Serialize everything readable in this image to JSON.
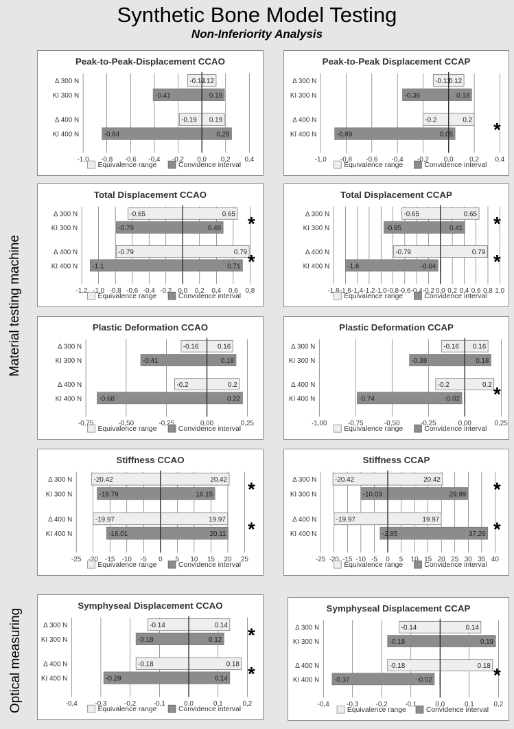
{
  "title": "Synthetic Bone Model Testing",
  "subtitle": "Non-Inferiority Analysis",
  "section_labels": [
    "Material testing machine",
    "Optical measuring"
  ],
  "legend": {
    "equivalence": "Equivalence range",
    "confidence": "Convidence interval"
  },
  "colors": {
    "equivalence_fill": "#eeeeee",
    "confidence_fill": "#8c8c8c",
    "grid": "#555555"
  },
  "chart_data": [
    {
      "type": "bar",
      "title": "Peak-to-Peak-Displacement CCAO",
      "categories": [
        "Δ 300 N",
        "KI 300 N",
        "Δ 400 N",
        "KI 400 N"
      ],
      "series": [
        {
          "name": "Equivalence range",
          "ranges": [
            [
              -0.12,
              0.12
            ],
            [
              -0.19,
              0.19
            ]
          ]
        },
        {
          "name": "Convidence interval",
          "ranges": [
            [
              -0.41,
              0.19
            ],
            [
              -0.84,
              0.25
            ]
          ]
        }
      ],
      "xlim": [
        -1.0,
        0.4
      ],
      "ticks": [
        -1.0,
        -0.8,
        -0.6,
        -0.4,
        -0.2,
        0.0,
        0.2,
        0.4
      ],
      "tick_labels": [
        "-1,0",
        "-0,8",
        "-0,6",
        "-0,4",
        "-0,2",
        "0,0",
        "0,2",
        "0,4"
      ],
      "grid": true,
      "asterisks": [
        false,
        false
      ]
    },
    {
      "type": "bar",
      "title": "Peak-to-Peak Displacement CCAP",
      "categories": [
        "Δ 300 N",
        "KI 300 N",
        "Δ 400 N",
        "KI 400 N"
      ],
      "series": [
        {
          "name": "Equivalence range",
          "ranges": [
            [
              -0.12,
              0.12
            ],
            [
              -0.2,
              0.2
            ]
          ]
        },
        {
          "name": "Convidence interval",
          "ranges": [
            [
              -0.36,
              0.18
            ],
            [
              -0.89,
              0.05
            ]
          ]
        }
      ],
      "xlim": [
        -1.0,
        0.4
      ],
      "ticks": [
        -1.0,
        -0.8,
        -0.6,
        -0.4,
        -0.2,
        0.0,
        0.2,
        0.4
      ],
      "tick_labels": [
        "-1,0",
        "-0,8",
        "-0,6",
        "-0,4",
        "-0,2",
        "0,0",
        "0,2",
        "0,4"
      ],
      "grid": true,
      "asterisks": [
        false,
        true
      ]
    },
    {
      "type": "bar",
      "title": "Total Displacement CCAO",
      "categories": [
        "Δ 300 N",
        "KI 300 N",
        "Δ 400 N",
        "KI 400 N"
      ],
      "series": [
        {
          "name": "Equivalence range",
          "ranges": [
            [
              -0.65,
              0.65
            ],
            [
              -0.79,
              0.79
            ]
          ]
        },
        {
          "name": "Convidence interval",
          "ranges": [
            [
              -0.79,
              0.48
            ],
            [
              -1.1,
              0.71
            ]
          ]
        }
      ],
      "xlim": [
        -1.2,
        0.8
      ],
      "ticks": [
        -1.2,
        -1.0,
        -0.8,
        -0.6,
        -0.4,
        -0.2,
        0.0,
        0.2,
        0.4,
        0.6,
        0.8
      ],
      "tick_labels": [
        "-1,2",
        "-1,0",
        "-0,8",
        "-0,6",
        "-0,4",
        "-0,2",
        "0,0",
        "0,2",
        "0,4",
        "0,6",
        "0,8"
      ],
      "grid": true,
      "asterisks": [
        true,
        true
      ]
    },
    {
      "type": "bar",
      "title": "Total Displacement CCAP",
      "categories": [
        "Δ 300 N",
        "KI 300 N",
        "Δ 400 N",
        "KI 400 N"
      ],
      "series": [
        {
          "name": "Equivalence range",
          "ranges": [
            [
              -0.65,
              0.65
            ],
            [
              -0.79,
              0.79
            ]
          ]
        },
        {
          "name": "Convidence interval",
          "ranges": [
            [
              -0.95,
              0.41
            ],
            [
              -1.6,
              -0.04
            ]
          ]
        }
      ],
      "xlim": [
        -1.8,
        1.0
      ],
      "ticks": [
        -1.8,
        -1.6,
        -1.4,
        -1.2,
        -1.0,
        -0.8,
        -0.6,
        -0.4,
        -0.2,
        0.0,
        0.2,
        0.4,
        0.6,
        0.8,
        1.0
      ],
      "tick_labels": [
        "-1,8",
        "-1,6",
        "-1,4",
        "-1,2",
        "-1,0",
        "-0,8",
        "-0,6",
        "-0,4",
        "-0,2",
        "0,0",
        "0,2",
        "0,4",
        "0,6",
        "0,8",
        "1,0"
      ],
      "grid": true,
      "asterisks": [
        true,
        true
      ]
    },
    {
      "type": "bar",
      "title": "Plastic Deformation CCAO",
      "categories": [
        "Δ 300 N",
        "KI 300 N",
        "Δ 400 N",
        "KI 400 N"
      ],
      "series": [
        {
          "name": "Equivalence range",
          "ranges": [
            [
              -0.16,
              0.16
            ],
            [
              -0.2,
              0.2
            ]
          ]
        },
        {
          "name": "Convidence interval",
          "ranges": [
            [
              -0.41,
              0.18
            ],
            [
              -0.68,
              0.22
            ]
          ]
        }
      ],
      "xlim": [
        -0.75,
        0.25
      ],
      "ticks": [
        -0.75,
        -0.5,
        -0.25,
        0.0,
        0.25
      ],
      "tick_labels": [
        "-0,75",
        "-0,50",
        "-0,25",
        "0,00",
        "0,25"
      ],
      "grid": true,
      "asterisks": [
        false,
        false
      ]
    },
    {
      "type": "bar",
      "title": "Plastic Deformation CCAP",
      "categories": [
        "Δ 300 N",
        "KI 300 N",
        "Δ 400 N",
        "KI 400 N"
      ],
      "series": [
        {
          "name": "Equivalence range",
          "ranges": [
            [
              -0.16,
              0.16
            ],
            [
              -0.2,
              0.2
            ]
          ]
        },
        {
          "name": "Convidence interval",
          "ranges": [
            [
              -0.38,
              0.18
            ],
            [
              -0.74,
              -0.02
            ]
          ]
        }
      ],
      "xlim": [
        -1.0,
        0.25
      ],
      "ticks": [
        -1.0,
        -0.75,
        -0.5,
        -0.25,
        0.0,
        0.25
      ],
      "tick_labels": [
        "-1,00",
        "-0,75",
        "-0,50",
        "-0,25",
        "0,00",
        "0,25"
      ],
      "grid": true,
      "asterisks": [
        false,
        true
      ]
    },
    {
      "type": "bar",
      "title": "Stiffness CCAO",
      "categories": [
        "Δ 300 N",
        "KI 300 N",
        "Δ 400 N",
        "KI 400 N"
      ],
      "series": [
        {
          "name": "Equivalence range",
          "ranges": [
            [
              -20.42,
              20.42
            ],
            [
              -19.97,
              19.97
            ]
          ]
        },
        {
          "name": "Convidence interval",
          "ranges": [
            [
              -18.79,
              16.15
            ],
            [
              -16.01,
              20.11
            ]
          ]
        }
      ],
      "xlim": [
        -25,
        25
      ],
      "ticks": [
        -25,
        -20,
        -15,
        -10,
        -5,
        0,
        5,
        10,
        15,
        20,
        25
      ],
      "tick_labels": [
        "-25",
        "-20",
        "-15",
        "-10",
        "-5",
        "0",
        "5",
        "10",
        "15",
        "20",
        "25"
      ],
      "grid": true,
      "asterisks": [
        true,
        true
      ]
    },
    {
      "type": "bar",
      "title": "Stiffness CCAP",
      "categories": [
        "Δ 300 N",
        "KI 300 N",
        "Δ 400 N",
        "KI 400 N"
      ],
      "series": [
        {
          "name": "Equivalence range",
          "ranges": [
            [
              -20.42,
              20.42
            ],
            [
              -19.97,
              19.97
            ]
          ]
        },
        {
          "name": "Convidence interval",
          "ranges": [
            [
              -10.03,
              29.99
            ],
            [
              -2.85,
              37.26
            ]
          ]
        }
      ],
      "xlim": [
        -25,
        40
      ],
      "ticks": [
        -25,
        -20,
        -15,
        -10,
        -5,
        0,
        5,
        10,
        15,
        20,
        25,
        30,
        35,
        40
      ],
      "tick_labels": [
        "-25",
        "-20",
        "-15",
        "-10",
        "-5",
        "0",
        "5",
        "10",
        "15",
        "20",
        "25",
        "30",
        "35",
        "40"
      ],
      "grid": true,
      "asterisks": [
        true,
        true
      ]
    },
    {
      "type": "bar",
      "title": "Symphyseal Displacement CCAO",
      "categories": [
        "Δ 300 N",
        "KI 300 N",
        "Δ 400 N",
        "KI 400 N"
      ],
      "series": [
        {
          "name": "Equivalence range",
          "ranges": [
            [
              -0.14,
              0.14
            ],
            [
              -0.18,
              0.18
            ]
          ]
        },
        {
          "name": "Convidence interval",
          "ranges": [
            [
              -0.18,
              0.12
            ],
            [
              -0.29,
              0.14
            ]
          ]
        }
      ],
      "xlim": [
        -0.4,
        0.2
      ],
      "ticks": [
        -0.4,
        -0.3,
        -0.2,
        -0.1,
        0.0,
        0.1,
        0.2
      ],
      "tick_labels": [
        "-0,4",
        "-0,3",
        "-0,2",
        "-0,1",
        "0,0",
        "0,1",
        "0,2"
      ],
      "grid": true,
      "asterisks": [
        true,
        true
      ]
    },
    {
      "type": "bar",
      "title": "Symphyseal Displacement CCAP",
      "categories": [
        "Δ 300 N",
        "KI 300 N",
        "Δ 400 N",
        "KI 400 N"
      ],
      "series": [
        {
          "name": "Equivalence range",
          "ranges": [
            [
              -0.14,
              0.14
            ],
            [
              -0.18,
              0.18
            ]
          ]
        },
        {
          "name": "Convidence interval",
          "ranges": [
            [
              -0.18,
              0.19
            ],
            [
              -0.37,
              -0.02
            ]
          ]
        }
      ],
      "xlim": [
        -0.4,
        0.2
      ],
      "ticks": [
        -0.4,
        -0.3,
        -0.2,
        -0.1,
        0.0,
        0.1,
        0.2
      ],
      "tick_labels": [
        "-0,4",
        "-0,3",
        "-0,2",
        "-0,1",
        "0,0",
        "0,1",
        "0,2"
      ],
      "grid": true,
      "asterisks": [
        false,
        true
      ]
    }
  ]
}
